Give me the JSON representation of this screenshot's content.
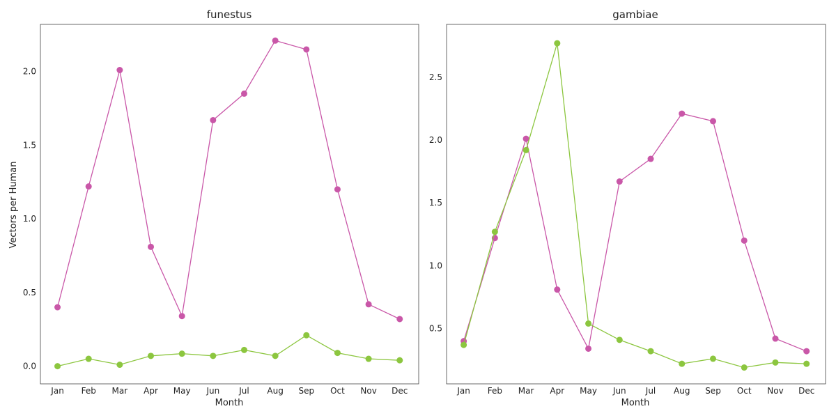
{
  "colors": {
    "series_pink": "#c957a8",
    "series_green": "#8cc63f",
    "axis": "#444444",
    "background": "#ffffff"
  },
  "chart_data": [
    {
      "type": "line",
      "title": "funestus",
      "xlabel": "Month",
      "ylabel": "Vectors per Human",
      "categories": [
        "Jan",
        "Feb",
        "Mar",
        "Apr",
        "May",
        "Jun",
        "Jul",
        "Aug",
        "Sep",
        "Oct",
        "Nov",
        "Dec"
      ],
      "ylim": [
        -0.12,
        2.32
      ],
      "yticks": [
        0.0,
        0.5,
        1.0,
        1.5,
        2.0
      ],
      "ytick_labels": [
        "0.0",
        "0.5",
        "1.0",
        "1.5",
        "2.0"
      ],
      "grid": false,
      "series": [
        {
          "color": "#c957a8",
          "values": [
            0.4,
            1.22,
            2.01,
            0.81,
            0.34,
            1.67,
            1.85,
            2.21,
            2.15,
            1.2,
            0.42,
            0.32
          ]
        },
        {
          "color": "#8cc63f",
          "values": [
            0.0,
            0.05,
            0.01,
            0.07,
            0.085,
            0.07,
            0.11,
            0.07,
            0.21,
            0.09,
            0.05,
            0.04
          ]
        }
      ]
    },
    {
      "type": "line",
      "title": "gambiae",
      "xlabel": "Month",
      "ylabel": "",
      "categories": [
        "Jan",
        "Feb",
        "Mar",
        "Apr",
        "May",
        "Jun",
        "Jul",
        "Aug",
        "Sep",
        "Oct",
        "Nov",
        "Dec"
      ],
      "ylim": [
        0.06,
        2.92
      ],
      "yticks": [
        0.5,
        1.0,
        1.5,
        2.0,
        2.5
      ],
      "ytick_labels": [
        "0.5",
        "1.0",
        "1.5",
        "2.0",
        "2.5"
      ],
      "grid": false,
      "series": [
        {
          "color": "#c957a8",
          "values": [
            0.4,
            1.22,
            2.01,
            0.81,
            0.34,
            1.67,
            1.85,
            2.21,
            2.15,
            1.2,
            0.42,
            0.32
          ]
        },
        {
          "color": "#8cc63f",
          "values": [
            0.37,
            1.27,
            1.92,
            2.77,
            0.54,
            0.41,
            0.32,
            0.22,
            0.26,
            0.19,
            0.23,
            0.22
          ]
        }
      ]
    }
  ]
}
